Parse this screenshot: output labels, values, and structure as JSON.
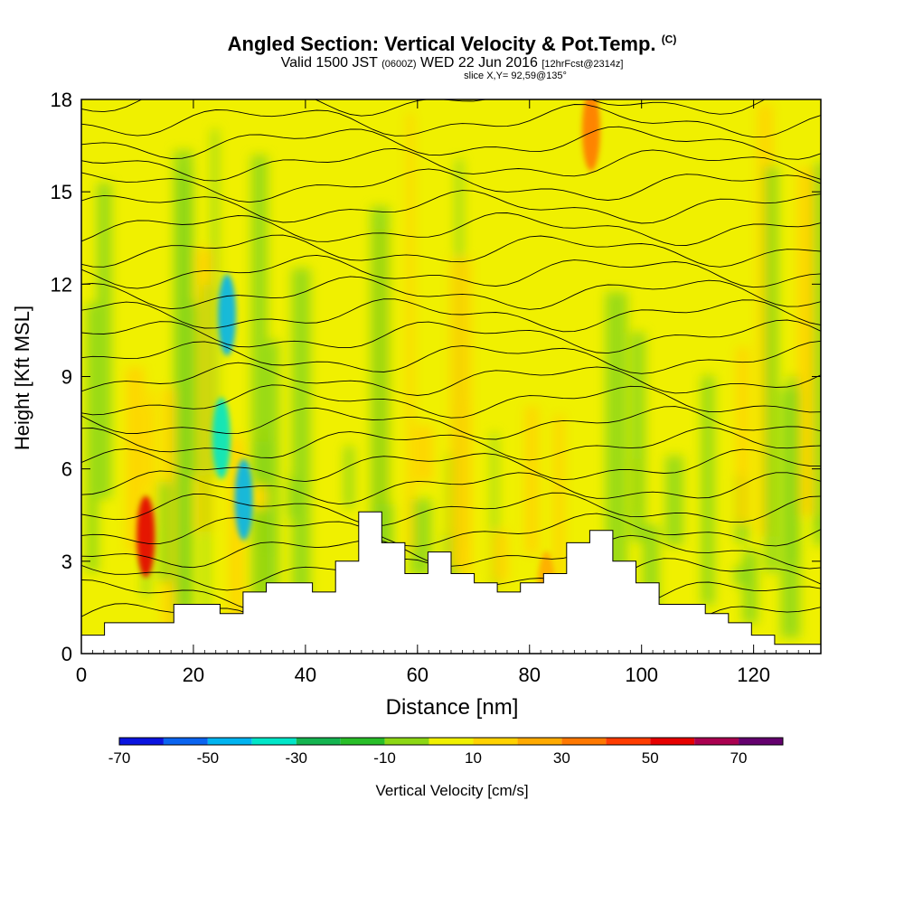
{
  "title": {
    "main": "Angled Section: Vertical Velocity & Pot.Temp.",
    "main_tag": "(C)",
    "sub_a": "Valid 1500 JST",
    "sub_b": "(0600Z)",
    "sub_c": "WED 22 Jun 2016",
    "sub_d": "[12hrFcst@2314z]",
    "slice": "slice X,Y= 92,59@135°"
  },
  "chart_data": {
    "type": "heatmap",
    "xlabel": "Distance [nm]",
    "ylabel": "Height [Kft MSL]",
    "xlim": [
      0,
      132
    ],
    "ylim": [
      0,
      18
    ],
    "x_ticks": [
      {
        "value": 0,
        "label": "0"
      },
      {
        "value": 20,
        "label": "20"
      },
      {
        "value": 40,
        "label": "40"
      },
      {
        "value": 60,
        "label": "60"
      },
      {
        "value": 80,
        "label": "80"
      },
      {
        "value": 100,
        "label": "100"
      },
      {
        "value": 120,
        "label": "120"
      }
    ],
    "y_ticks": [
      {
        "value": 0,
        "label": "0"
      },
      {
        "value": 3,
        "label": "3"
      },
      {
        "value": 6,
        "label": "6"
      },
      {
        "value": 9,
        "label": "9"
      },
      {
        "value": 12,
        "label": "12"
      },
      {
        "value": 15,
        "label": "15"
      },
      {
        "value": 18,
        "label": "18"
      }
    ],
    "colorbar": {
      "label": "Vertical Velocity [cm/s]",
      "range": [
        -70,
        80
      ],
      "colors": [
        "#0a14e0",
        "#0a64f0",
        "#00b4f0",
        "#00e6c8",
        "#14b450",
        "#28be28",
        "#8cd714",
        "#f0f000",
        "#ffd200",
        "#ffaa00",
        "#ff7800",
        "#ff3c00",
        "#e60000",
        "#aa0050",
        "#64006e"
      ],
      "tick_labels": [
        {
          "value": -70,
          "label": "-70"
        },
        {
          "value": -50,
          "label": "-50"
        },
        {
          "value": -30,
          "label": "-30"
        },
        {
          "value": -10,
          "label": "-10"
        },
        {
          "value": 10,
          "label": "10"
        },
        {
          "value": 30,
          "label": "30"
        },
        {
          "value": 50,
          "label": "50"
        },
        {
          "value": 70,
          "label": "70"
        }
      ]
    },
    "features": [
      {
        "x": 11.5,
        "y": 3.8,
        "w": 50
      },
      {
        "x": 25,
        "y": 7,
        "w": -40
      },
      {
        "x": 26,
        "y": 11,
        "w": -50
      },
      {
        "x": 29,
        "y": 5,
        "w": -50
      },
      {
        "x": 91,
        "y": 17,
        "w": 35
      },
      {
        "x": 83,
        "y": 2,
        "w": 25
      }
    ],
    "terrain_height_kft": [
      0.6,
      1.0,
      1.0,
      1.0,
      1.6,
      1.6,
      1.3,
      2.0,
      2.3,
      2.3,
      2.0,
      3.0,
      4.6,
      3.6,
      2.6,
      3.3,
      2.6,
      2.3,
      2.0,
      2.3,
      2.6,
      3.6,
      4.0,
      3.0,
      2.3,
      1.6,
      1.6,
      1.3,
      1.0,
      0.6,
      0.3,
      0.3,
      0.3
    ]
  }
}
